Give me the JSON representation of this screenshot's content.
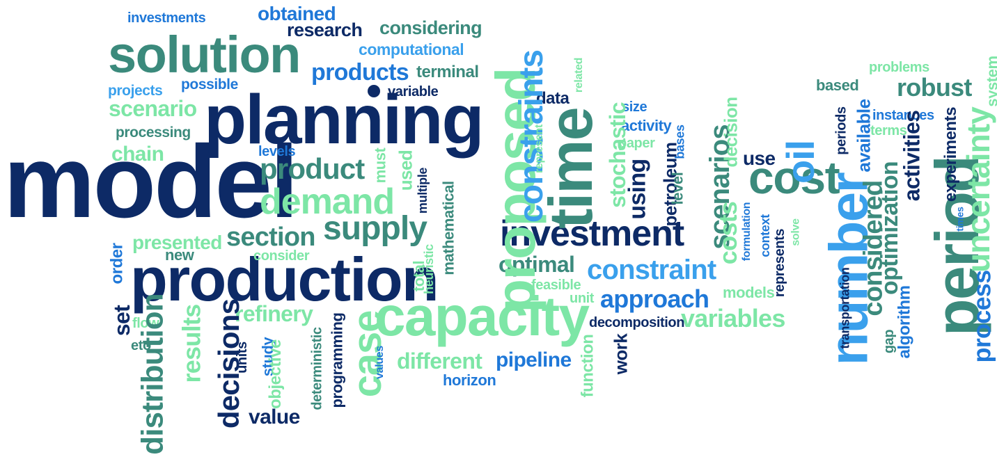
{
  "colors": {
    "navy": "#0d2a66",
    "blue": "#1f78d8",
    "sky": "#3aa0ec",
    "teal": "#3b8a7c",
    "green": "#55c98a",
    "mint": "#7de6a6",
    "lime": "#8ee87a"
  },
  "words": [
    {
      "text": "model"
    },
    {
      "text": "planning"
    },
    {
      "text": "production"
    },
    {
      "text": "solution"
    },
    {
      "text": "capacity"
    },
    {
      "text": "proposed"
    },
    {
      "text": "time"
    },
    {
      "text": "period"
    },
    {
      "text": "investment"
    },
    {
      "text": "cost"
    },
    {
      "text": "number"
    },
    {
      "text": "demand"
    },
    {
      "text": "supply"
    },
    {
      "text": "product"
    },
    {
      "text": "constraints"
    },
    {
      "text": "case"
    },
    {
      "text": "oil"
    },
    {
      "text": "constraint"
    },
    {
      "text": "products"
    },
    {
      "text": "scenario"
    },
    {
      "text": "section"
    },
    {
      "text": "distribution"
    },
    {
      "text": "uncertainty"
    },
    {
      "text": "decisions"
    },
    {
      "text": "approach"
    },
    {
      "text": "variables"
    },
    {
      "text": "optimal"
    },
    {
      "text": "refinery"
    },
    {
      "text": "different"
    },
    {
      "text": "pipeline"
    },
    {
      "text": "presented"
    },
    {
      "text": "robust"
    },
    {
      "text": "scenarios"
    },
    {
      "text": "costs"
    },
    {
      "text": "considered"
    },
    {
      "text": "optimization"
    },
    {
      "text": "activities"
    },
    {
      "text": "process"
    },
    {
      "text": "results"
    },
    {
      "text": "using"
    },
    {
      "text": "research"
    },
    {
      "text": "considering"
    },
    {
      "text": "obtained"
    },
    {
      "text": "computational"
    },
    {
      "text": "terminal"
    },
    {
      "text": "investments"
    },
    {
      "text": "possible"
    },
    {
      "text": "projects"
    },
    {
      "text": "variable"
    },
    {
      "text": "processing"
    },
    {
      "text": "chain"
    },
    {
      "text": "levels"
    },
    {
      "text": "new"
    },
    {
      "text": "consider"
    },
    {
      "text": "order"
    },
    {
      "text": "set"
    },
    {
      "text": "flow"
    },
    {
      "text": "eto"
    },
    {
      "text": "units"
    },
    {
      "text": "study"
    },
    {
      "text": "objective"
    },
    {
      "text": "deterministic"
    },
    {
      "text": "programming"
    },
    {
      "text": "values"
    },
    {
      "text": "value"
    },
    {
      "text": "horizon"
    },
    {
      "text": "total"
    },
    {
      "text": "heuristic"
    },
    {
      "text": "mathematical"
    },
    {
      "text": "multiple"
    },
    {
      "text": "used"
    },
    {
      "text": "must"
    },
    {
      "text": "data"
    },
    {
      "text": "related"
    },
    {
      "text": "stochastic"
    },
    {
      "text": "represent"
    },
    {
      "text": "size"
    },
    {
      "text": "activity"
    },
    {
      "text": "paper"
    },
    {
      "text": "petroleum"
    },
    {
      "text": "bases"
    },
    {
      "text": "level"
    },
    {
      "text": "decision"
    },
    {
      "text": "use"
    },
    {
      "text": "feasible"
    },
    {
      "text": "unit"
    },
    {
      "text": "models"
    },
    {
      "text": "decomposition"
    },
    {
      "text": "work"
    },
    {
      "text": "function"
    },
    {
      "text": "formulation"
    },
    {
      "text": "context"
    },
    {
      "text": "represents"
    },
    {
      "text": "solve"
    },
    {
      "text": "transportation"
    },
    {
      "text": "periods"
    },
    {
      "text": "available"
    },
    {
      "text": "plan"
    },
    {
      "text": "terms"
    },
    {
      "text": "instances"
    },
    {
      "text": "problems"
    },
    {
      "text": "based"
    },
    {
      "text": "system"
    },
    {
      "text": "experiments"
    },
    {
      "text": "times"
    },
    {
      "text": "algorithm"
    },
    {
      "text": "gap"
    }
  ]
}
